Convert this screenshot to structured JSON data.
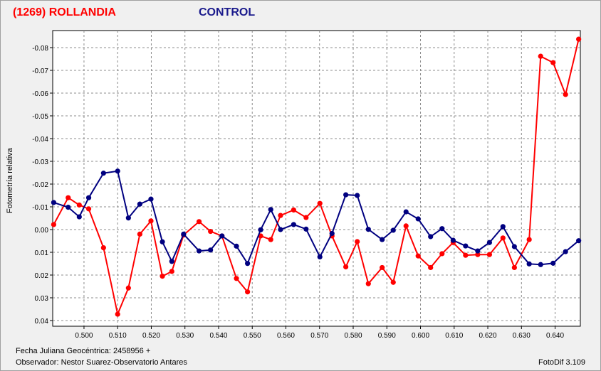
{
  "header": {
    "title": "(1269) ROLLANDIA",
    "control_label": "CONTROL"
  },
  "footer": {
    "jd_line": "Fecha Juliana Geocéntrica: 2458956 +",
    "observer_line": "Observador: Nestor Suarez-Observatorio Antares",
    "software": "FotoDif 3.109"
  },
  "colors": {
    "target": "#ff0000",
    "control": "#000080",
    "grid": "#8c8c8c"
  },
  "chart_data": {
    "type": "line",
    "ylabel": "Fotometría relativa",
    "xlabel": "",
    "xlim": [
      0.4907,
      0.6475
    ],
    "ylim": [
      0.0425,
      -0.0875
    ],
    "y_inverted": true,
    "grid": true,
    "x_ticks": [
      0.5,
      0.51,
      0.52,
      0.53,
      0.54,
      0.55,
      0.56,
      0.57,
      0.58,
      0.59,
      0.6,
      0.61,
      0.62,
      0.63,
      0.64
    ],
    "x_tick_labels": [
      "0.500",
      "0.510",
      "0.520",
      "0.530",
      "0.540",
      "0.550",
      "0.560",
      "0.570",
      "0.580",
      "0.590",
      "0.600",
      "0.610",
      "0.620",
      "0.630",
      "0.640"
    ],
    "y_ticks": [
      -0.08,
      -0.07,
      -0.06,
      -0.05,
      -0.04,
      -0.03,
      -0.02,
      -0.01,
      0.0,
      0.01,
      0.02,
      0.03,
      0.04
    ],
    "y_tick_labels": [
      "-0.08",
      "-0.07",
      "-0.06",
      "-0.05",
      "-0.04",
      "-0.03",
      "-0.02",
      "-0.01",
      "0.00",
      "0.01",
      "0.02",
      "0.03",
      "0.04"
    ],
    "series": [
      {
        "name": "(1269) ROLLANDIA",
        "color": "#ff0000",
        "points": [
          [
            0.491,
            -0.0022
          ],
          [
            0.4953,
            -0.014
          ],
          [
            0.4986,
            -0.0108
          ],
          [
            0.5014,
            -0.0091
          ],
          [
            0.5058,
            0.008
          ],
          [
            0.51,
            0.0372
          ],
          [
            0.5132,
            0.0257
          ],
          [
            0.5166,
            0.002
          ],
          [
            0.5199,
            -0.0038
          ],
          [
            0.5233,
            0.0205
          ],
          [
            0.5261,
            0.0184
          ],
          [
            0.5296,
            0.0024
          ],
          [
            0.5342,
            -0.0035
          ],
          [
            0.5376,
            0.0008
          ],
          [
            0.541,
            0.0028
          ],
          [
            0.5453,
            0.0215
          ],
          [
            0.5486,
            0.0274
          ],
          [
            0.5525,
            0.0028
          ],
          [
            0.5555,
            0.0044
          ],
          [
            0.5584,
            -0.0062
          ],
          [
            0.5623,
            -0.0086
          ],
          [
            0.566,
            -0.0053
          ],
          [
            0.5701,
            -0.0115
          ],
          [
            0.5737,
            0.0028
          ],
          [
            0.5778,
            0.0164
          ],
          [
            0.5812,
            0.0053
          ],
          [
            0.5845,
            0.0238
          ],
          [
            0.5886,
            0.0167
          ],
          [
            0.5919,
            0.0232
          ],
          [
            0.5957,
            -0.0016
          ],
          [
            0.5993,
            0.0116
          ],
          [
            0.603,
            0.0167
          ],
          [
            0.6064,
            0.0106
          ],
          [
            0.6097,
            0.0057
          ],
          [
            0.6134,
            0.0113
          ],
          [
            0.617,
            0.011
          ],
          [
            0.6205,
            0.011
          ],
          [
            0.6245,
            0.0037
          ],
          [
            0.6279,
            0.0167
          ],
          [
            0.6323,
            0.0044
          ],
          [
            0.6357,
            -0.0762
          ],
          [
            0.6394,
            -0.0734
          ],
          [
            0.6431,
            -0.0594
          ],
          [
            0.647,
            -0.0837
          ]
        ]
      },
      {
        "name": "CONTROL",
        "color": "#000080",
        "points": [
          [
            0.491,
            -0.0119
          ],
          [
            0.4953,
            -0.0098
          ],
          [
            0.4986,
            -0.0056
          ],
          [
            0.5014,
            -0.014
          ],
          [
            0.5058,
            -0.0248
          ],
          [
            0.51,
            -0.0257
          ],
          [
            0.5132,
            -0.0051
          ],
          [
            0.5166,
            -0.0112
          ],
          [
            0.5199,
            -0.0134
          ],
          [
            0.5233,
            0.0054
          ],
          [
            0.5261,
            0.014
          ],
          [
            0.5296,
            0.002
          ],
          [
            0.5342,
            0.0094
          ],
          [
            0.5376,
            0.009
          ],
          [
            0.541,
            0.0028
          ],
          [
            0.5453,
            0.0073
          ],
          [
            0.5486,
            0.0149
          ],
          [
            0.5525,
            0.0001
          ],
          [
            0.5555,
            -0.0088
          ],
          [
            0.5584,
            0.0
          ],
          [
            0.5623,
            -0.0022
          ],
          [
            0.566,
            -0.0002
          ],
          [
            0.5701,
            0.012
          ],
          [
            0.5737,
            0.0017
          ],
          [
            0.5778,
            -0.0153
          ],
          [
            0.5812,
            -0.015
          ],
          [
            0.5845,
            -0.0001
          ],
          [
            0.5886,
            0.0044
          ],
          [
            0.5919,
            0.0003
          ],
          [
            0.5957,
            -0.0078
          ],
          [
            0.5993,
            -0.0047
          ],
          [
            0.603,
            0.0031
          ],
          [
            0.6064,
            -0.0004
          ],
          [
            0.6097,
            0.0047
          ],
          [
            0.6134,
            0.0072
          ],
          [
            0.617,
            0.0094
          ],
          [
            0.6205,
            0.0057
          ],
          [
            0.6245,
            -0.0013
          ],
          [
            0.6279,
            0.0075
          ],
          [
            0.6323,
            0.0151
          ],
          [
            0.6357,
            0.0154
          ],
          [
            0.6394,
            0.0148
          ],
          [
            0.6431,
            0.0097
          ],
          [
            0.647,
            0.0049
          ]
        ]
      }
    ]
  }
}
